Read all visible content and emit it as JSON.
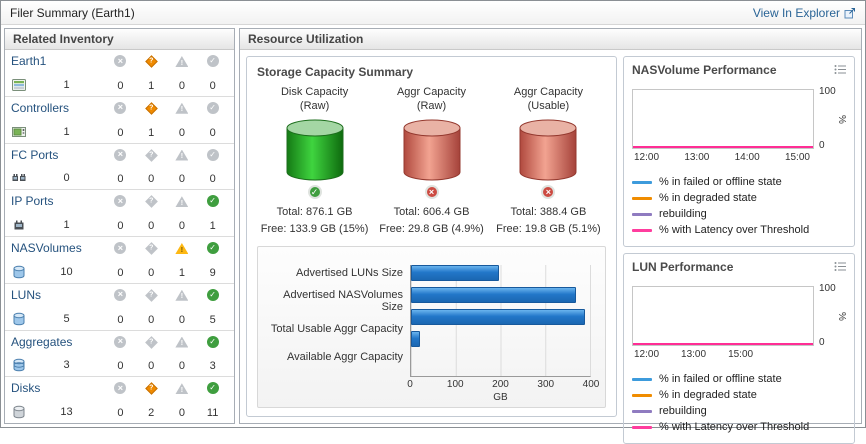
{
  "header": {
    "title": "Filer Summary (Earth1)",
    "explorer_link": "View In Explorer"
  },
  "related_inventory": {
    "title": "Related Inventory",
    "status_column_icons": [
      "circle-x-icon",
      "diamond-warning-icon",
      "triangle-caution-icon",
      "check-circle-icon"
    ],
    "rows": [
      {
        "label": "Earth1",
        "icon": "filer-icon",
        "count": "1",
        "statuses": [
          "0",
          "1",
          "0",
          "0"
        ]
      },
      {
        "label": "Controllers",
        "icon": "controller-icon",
        "count": "1",
        "statuses": [
          "0",
          "1",
          "0",
          "0"
        ]
      },
      {
        "label": "FC Ports",
        "icon": "fc-port-icon",
        "count": "0",
        "statuses": [
          "0",
          "0",
          "0",
          "0"
        ]
      },
      {
        "label": "IP Ports",
        "icon": "ip-port-icon",
        "count": "1",
        "statuses": [
          "0",
          "0",
          "0",
          "1"
        ]
      },
      {
        "label": "NASVolumes",
        "icon": "nasvolume-icon",
        "count": "10",
        "statuses": [
          "0",
          "0",
          "1",
          "9"
        ]
      },
      {
        "label": "LUNs",
        "icon": "lun-icon",
        "count": "5",
        "statuses": [
          "0",
          "0",
          "0",
          "5"
        ]
      },
      {
        "label": "Aggregates",
        "icon": "aggregate-icon",
        "count": "3",
        "statuses": [
          "0",
          "0",
          "0",
          "3"
        ]
      },
      {
        "label": "Disks",
        "icon": "disk-icon",
        "count": "13",
        "statuses": [
          "0",
          "2",
          "0",
          "11"
        ]
      }
    ]
  },
  "resource_utilization": {
    "title": "Resource Utilization"
  },
  "storage_capacity": {
    "title": "Storage Capacity Summary",
    "gauges": [
      {
        "title_line1": "Disk Capacity",
        "title_line2": "(Raw)",
        "total": "Total:  876.1 GB",
        "free": "Free:  133.9 GB (15%)",
        "status": "ok",
        "fill_color": "#2eb82e"
      },
      {
        "title_line1": "Aggr Capacity",
        "title_line2": "(Raw)",
        "total": "Total:  606.4 GB",
        "free": "Free:  29.8 GB (4.9%)",
        "status": "error",
        "fill_color": "#e07a68"
      },
      {
        "title_line1": "Aggr Capacity",
        "title_line2": "(Usable)",
        "total": "Total:  388.4 GB",
        "free": "Free:  19.8 GB (5.1%)",
        "status": "error",
        "fill_color": "#e07a68"
      }
    ]
  },
  "chart_data": [
    {
      "type": "bar",
      "orientation": "horizontal",
      "categories": [
        "Advertised LUNs Size",
        "Advertised NASVolumes Size",
        "Total Usable Aggr Capacity",
        "Available Aggr Capacity"
      ],
      "values": [
        196,
        368,
        388.4,
        19.8
      ],
      "xlabel": "GB",
      "xlim": [
        0,
        400
      ],
      "xticks": [
        0,
        100,
        200,
        300,
        400
      ],
      "bar_color": "#1d76cb",
      "grid": true
    },
    {
      "type": "line",
      "title": "NASVolume Performance",
      "x": [
        "12:00",
        "13:00",
        "14:00",
        "15:00"
      ],
      "ylim": [
        0,
        100
      ],
      "ylabel": "%",
      "legend_position": "bottom",
      "series": [
        {
          "name": "% in failed or offline state",
          "color": "#3d9bdc",
          "values": [
            0,
            0,
            0,
            0
          ]
        },
        {
          "name": "% in degraded state",
          "color": "#f08c00",
          "values": [
            0,
            0,
            0,
            0
          ]
        },
        {
          "name": "rebuilding",
          "color": "#8f7bc0",
          "values": [
            0,
            0,
            0,
            0
          ]
        },
        {
          "name": "% with Latency over Threshold",
          "color": "#ff3d9e",
          "values": [
            0,
            0,
            0,
            0
          ]
        }
      ]
    },
    {
      "type": "line",
      "title": "LUN Performance",
      "x": [
        "12:00",
        "13:00",
        "15:00"
      ],
      "ylim": [
        0,
        100
      ],
      "ylabel": "%",
      "legend_position": "bottom",
      "series": [
        {
          "name": "% in failed or offline state",
          "color": "#3d9bdc",
          "values": [
            0,
            0,
            0
          ]
        },
        {
          "name": "% in degraded state",
          "color": "#f08c00",
          "values": [
            0,
            0,
            0
          ]
        },
        {
          "name": "rebuilding",
          "color": "#8f7bc0",
          "values": [
            0,
            0,
            0
          ]
        },
        {
          "name": "% with Latency over Threshold",
          "color": "#ff3d9e",
          "values": [
            0,
            0,
            0
          ]
        }
      ]
    }
  ]
}
